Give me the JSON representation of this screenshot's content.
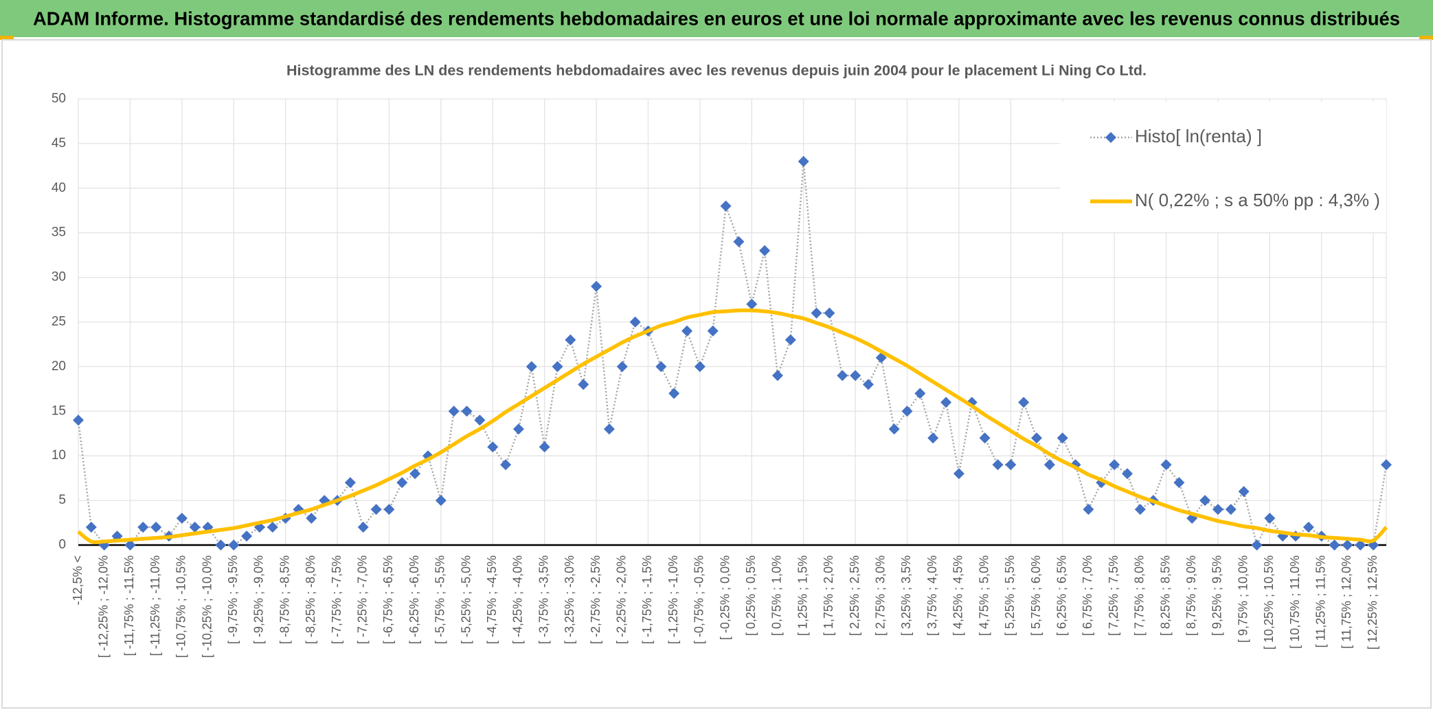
{
  "header": {
    "title": "ADAM Informe. Histogramme standardisé des rendements hebdomadaires en euros et une loi normale approximante avec les revenus connus distribués"
  },
  "chart_data": {
    "type": "line",
    "title": "Histogramme des LN des rendements hebdomadaires avec les revenus depuis juin 2004 pour le placement Li Ning Co Ltd.",
    "categories": [
      "-12,5% <",
      null,
      "[ -12,25% ; -12,0%",
      null,
      "[ -11,75% ; -11,5%",
      null,
      "[ -11,25% ; -11,0%",
      null,
      "[ -10,75% ; -10,5%",
      null,
      "[ -10,25% ; -10,0%",
      null,
      "[ -9,75% ; -9,5%",
      null,
      "[ -9,25% ; -9,0%",
      null,
      "[ -8,75% ; -8,5%",
      null,
      "[ -8,25% ; -8,0%",
      null,
      "[ -7,75% ; -7,5%",
      null,
      "[ -7,25% ; -7,0%",
      null,
      "[ -6,75% ; -6,5%",
      null,
      "[ -6,25% ; -6,0%",
      null,
      "[ -5,75% ; -5,5%",
      null,
      "[ -5,25% ; -5,0%",
      null,
      "[ -4,75% ; -4,5%",
      null,
      "[ -4,25% ; -4,0%",
      null,
      "[ -3,75% ; -3,5%",
      null,
      "[ -3,25% ; -3,0%",
      null,
      "[ -2,75% ; -2,5%",
      null,
      "[ -2,25% ; -2,0%",
      null,
      "[ -1,75% ; -1,5%",
      null,
      "[ -1,25% ; -1,0%",
      null,
      "[ -0,75% ; -0,5%",
      null,
      "[ -0,25% ; 0,0%",
      null,
      "[ 0,25% ; 0,5%",
      null,
      "[ 0,75% ; 1,0%",
      null,
      "[ 1,25% ; 1,5%",
      null,
      "[ 1,75% ; 2,0%",
      null,
      "[ 2,25% ; 2,5%",
      null,
      "[ 2,75% ; 3,0%",
      null,
      "[ 3,25% ; 3,5%",
      null,
      "[ 3,75% ; 4,0%",
      null,
      "[ 4,25% ; 4,5%",
      null,
      "[ 4,75% ; 5,0%",
      null,
      "[ 5,25% ; 5,5%",
      null,
      "[ 5,75% ; 6,0%",
      null,
      "[ 6,25% ; 6,5%",
      null,
      "[ 6,75% ; 7,0%",
      null,
      "[ 7,25% ; 7,5%",
      null,
      "[ 7,75% ; 8,0%",
      null,
      "[ 8,25% ; 8,5%",
      null,
      "[ 8,75% ; 9,0%",
      null,
      "[ 9,25% ; 9,5%",
      null,
      "[ 9,75% ; 10,0%",
      null,
      "[ 10,25% ; 10,5%",
      null,
      "[ 10,75% ; 11,0%",
      null,
      "[ 11,25% ; 11,5%",
      null,
      "[ 11,75% ; 12,0%",
      null,
      "[ 12,25% ; 12,5%",
      null
    ],
    "series": [
      {
        "name": "Histo[ ln(renta) ]",
        "color": "#4472c4",
        "line_color": "#a5a5a5",
        "values": [
          14,
          2,
          0,
          1,
          0,
          2,
          2,
          1,
          3,
          2,
          2,
          0,
          0,
          1,
          2,
          2,
          3,
          4,
          3,
          5,
          5,
          7,
          2,
          4,
          4,
          7,
          8,
          10,
          5,
          15,
          15,
          14,
          11,
          9,
          13,
          20,
          11,
          20,
          23,
          18,
          29,
          13,
          20,
          25,
          24,
          20,
          17,
          24,
          20,
          24,
          38,
          34,
          27,
          33,
          19,
          23,
          43,
          26,
          26,
          19,
          19,
          18,
          21,
          13,
          15,
          17,
          12,
          16,
          8,
          16,
          12,
          9,
          9,
          16,
          12,
          9,
          12,
          9,
          4,
          7,
          9,
          8,
          4,
          5,
          9,
          7,
          3,
          5,
          4,
          4,
          6,
          0,
          3,
          1,
          1,
          2,
          1,
          0,
          0,
          0,
          0,
          9
        ]
      },
      {
        "name": "N( 0,22% ; s a 50% pp : 4,3% )",
        "color": "#ffc000",
        "values": [
          1.5,
          0.4,
          0.4,
          0.5,
          0.6,
          0.7,
          0.8,
          0.9,
          1.1,
          1.3,
          1.5,
          1.7,
          1.9,
          2.2,
          2.5,
          2.8,
          3.2,
          3.6,
          4.0,
          4.5,
          5.0,
          5.5,
          6.1,
          6.7,
          7.4,
          8.1,
          8.9,
          9.6,
          10.4,
          11.3,
          12.2,
          13.0,
          13.9,
          14.9,
          15.8,
          16.7,
          17.6,
          18.5,
          19.4,
          20.3,
          21.1,
          21.9,
          22.7,
          23.4,
          24.0,
          24.6,
          25.0,
          25.5,
          25.8,
          26.1,
          26.2,
          26.3,
          26.3,
          26.2,
          26.0,
          25.7,
          25.4,
          24.9,
          24.4,
          23.8,
          23.2,
          22.5,
          21.7,
          20.9,
          20.1,
          19.2,
          18.3,
          17.4,
          16.5,
          15.6,
          14.6,
          13.7,
          12.8,
          11.9,
          11.1,
          10.2,
          9.4,
          8.7,
          7.9,
          7.3,
          6.6,
          6.0,
          5.4,
          4.9,
          4.4,
          3.9,
          3.5,
          3.1,
          2.7,
          2.4,
          2.1,
          1.9,
          1.6,
          1.4,
          1.2,
          1.1,
          0.9,
          0.8,
          0.7,
          0.6,
          0.5,
          2.0
        ]
      }
    ],
    "ylim": [
      0,
      50
    ],
    "yticks": [
      0,
      5,
      10,
      15,
      20,
      25,
      30,
      35,
      40,
      45,
      50
    ],
    "grid": true,
    "legend": "top-right"
  }
}
